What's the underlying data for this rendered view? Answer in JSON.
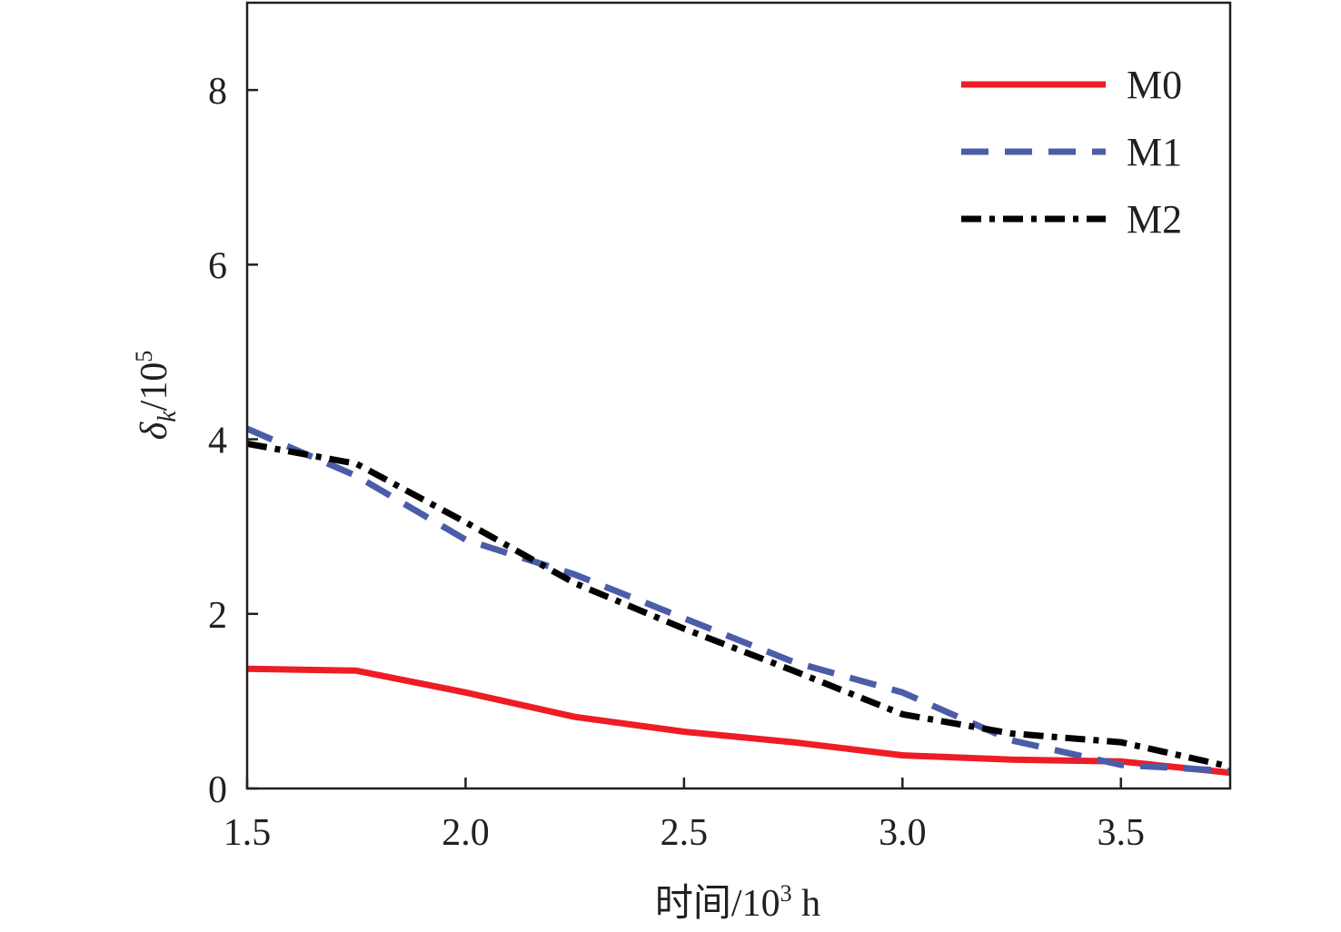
{
  "chart_data": {
    "type": "line",
    "xlabel": "时间/10³ h",
    "xlabel_parts": {
      "main": "时间/10",
      "sup": "3",
      "tail": " h"
    },
    "ylabel": "δk/10⁵",
    "ylabel_parts": {
      "sym": "δ",
      "sub": "k",
      "main": "/10",
      "sup": "5"
    },
    "xlim": [
      1.5,
      3.75
    ],
    "ylim": [
      0,
      9
    ],
    "x_ticks": [
      1.5,
      2.0,
      2.5,
      3.0,
      3.5
    ],
    "x_tick_labels": [
      "1.5",
      "2.0",
      "2.5",
      "3.0",
      "3.5"
    ],
    "y_ticks": [
      0,
      2,
      4,
      6,
      8
    ],
    "y_tick_labels": [
      "0",
      "2",
      "4",
      "6",
      "8"
    ],
    "grid": false,
    "legend_position": "top-right",
    "series": [
      {
        "name": "M0",
        "color": "#ee1c25",
        "dash": "solid",
        "x": [
          1.5,
          1.75,
          2.0,
          2.25,
          2.5,
          2.75,
          3.0,
          3.25,
          3.5,
          3.75
        ],
        "y": [
          1.37,
          1.35,
          1.1,
          0.82,
          0.65,
          0.53,
          0.38,
          0.33,
          0.31,
          0.18
        ]
      },
      {
        "name": "M1",
        "color": "#4b5da8",
        "dash": "dashed",
        "x": [
          1.5,
          1.75,
          2.0,
          2.25,
          2.5,
          2.75,
          3.0,
          3.25,
          3.5,
          3.75
        ],
        "y": [
          4.12,
          3.58,
          2.85,
          2.45,
          1.95,
          1.45,
          1.1,
          0.55,
          0.27,
          0.2
        ]
      },
      {
        "name": "M2",
        "color": "#000000",
        "dash": "dashdot",
        "x": [
          1.5,
          1.75,
          2.0,
          2.25,
          2.5,
          2.75,
          3.0,
          3.25,
          3.5,
          3.75
        ],
        "y": [
          3.95,
          3.72,
          3.05,
          2.35,
          1.83,
          1.35,
          0.85,
          0.63,
          0.53,
          0.25
        ]
      }
    ]
  }
}
